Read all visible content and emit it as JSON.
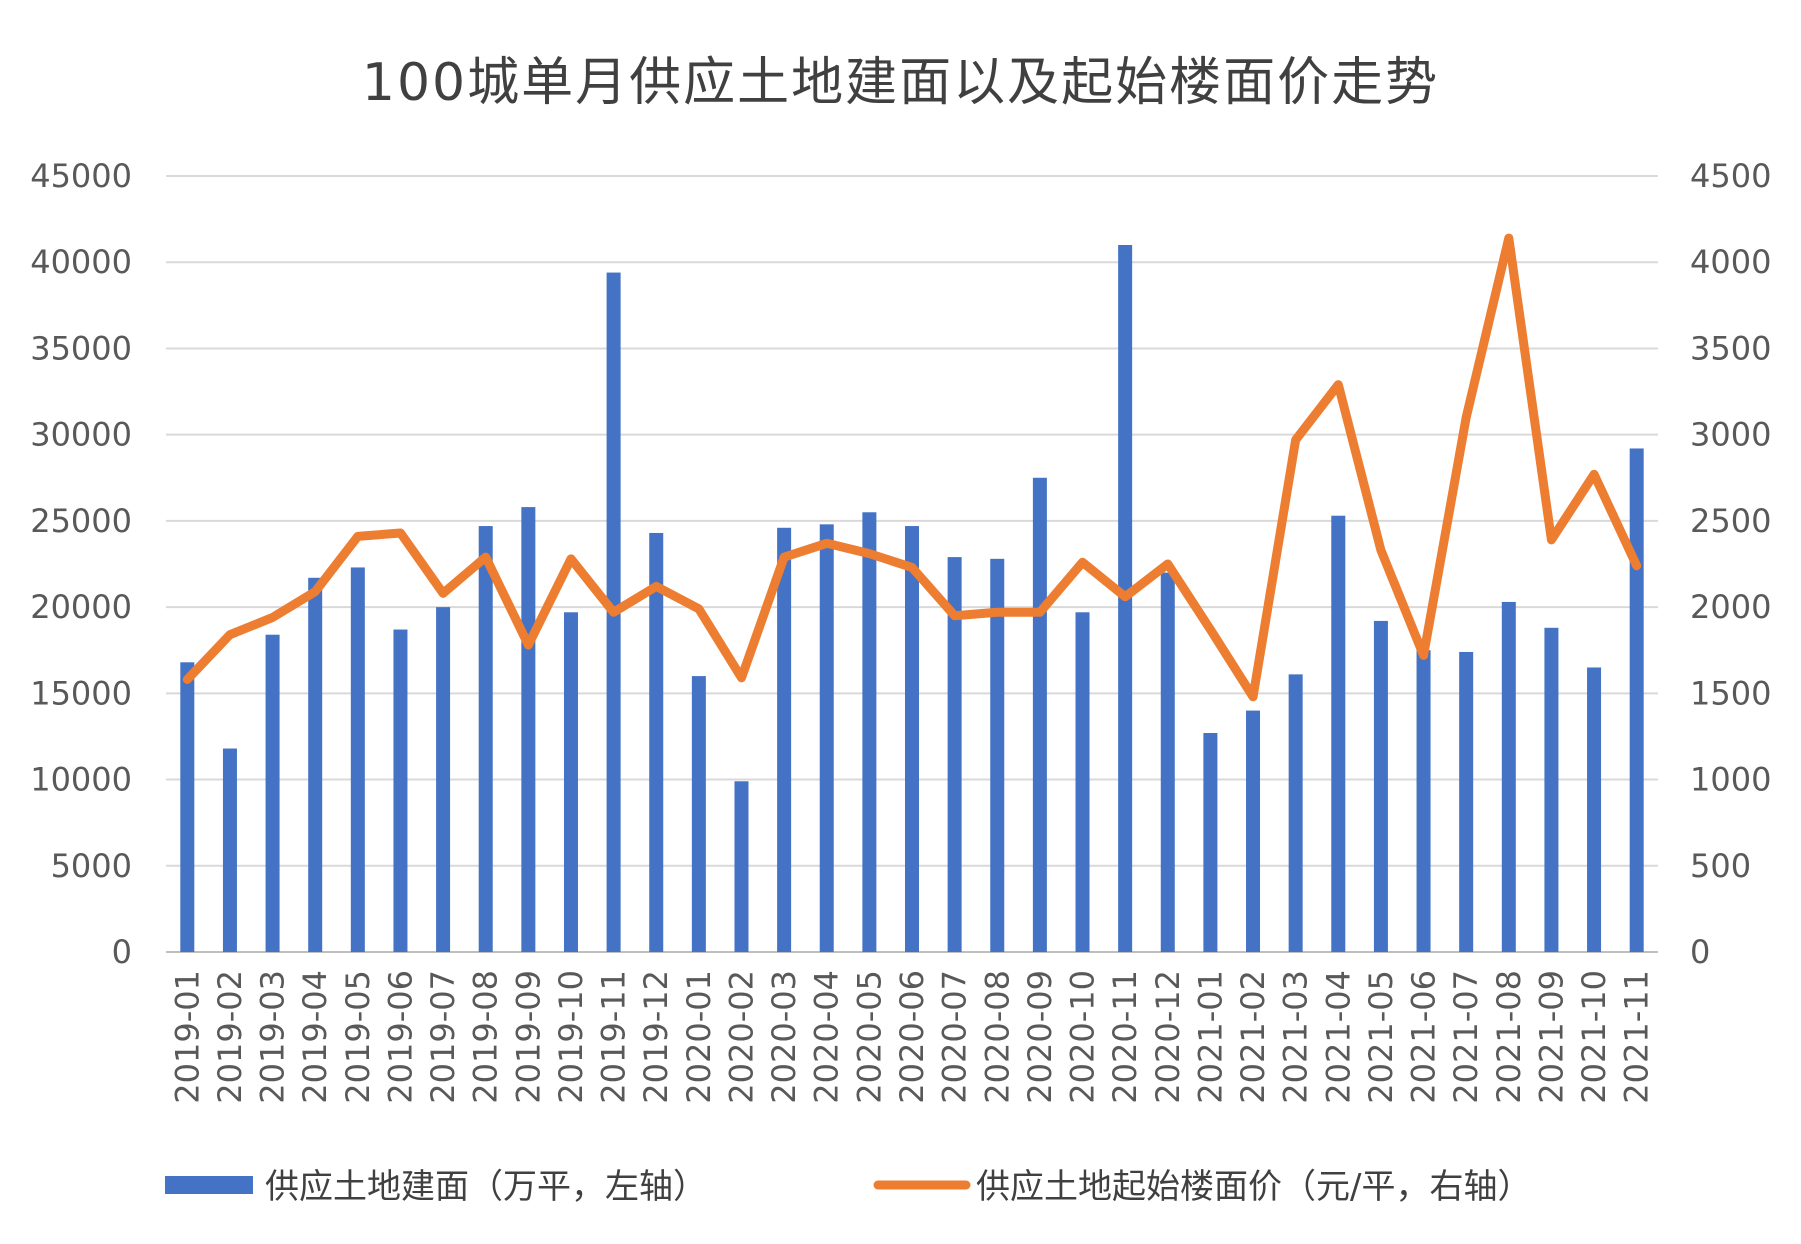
{
  "chart_data": {
    "type": "bar",
    "title": "100城单月供应土地建面以及起始楼面价走势",
    "categories": [
      "2019-01",
      "2019-02",
      "2019-03",
      "2019-04",
      "2019-05",
      "2019-06",
      "2019-07",
      "2019-08",
      "2019-09",
      "2019-10",
      "2019-11",
      "2019-12",
      "2020-01",
      "2020-02",
      "2020-03",
      "2020-04",
      "2020-05",
      "2020-06",
      "2020-07",
      "2020-08",
      "2020-09",
      "2020-10",
      "2020-11",
      "2020-12",
      "2021-01",
      "2021-02",
      "2021-03",
      "2021-04",
      "2021-05",
      "2021-06",
      "2021-07",
      "2021-08",
      "2021-09",
      "2021-10",
      "2021-11"
    ],
    "series": [
      {
        "name": "供应土地建面（万平，左轴）",
        "type": "bar",
        "axis": "left",
        "color": "#4472C4",
        "values": [
          16800,
          11800,
          18400,
          21700,
          22300,
          18700,
          20000,
          24700,
          25800,
          19700,
          39400,
          24300,
          16000,
          9900,
          24600,
          24800,
          25500,
          24700,
          22900,
          22800,
          27500,
          19700,
          41000,
          22000,
          12700,
          14000,
          16100,
          25300,
          19200,
          17500,
          17400,
          20300,
          18800,
          16500,
          29200
        ]
      },
      {
        "name": "供应土地起始楼面价（元/平，右轴）",
        "type": "line",
        "axis": "right",
        "color": "#ED7D31",
        "values": [
          1580,
          1840,
          1940,
          2090,
          2410,
          2430,
          2080,
          2290,
          1780,
          2280,
          1970,
          2120,
          1990,
          1590,
          2290,
          2370,
          2310,
          2230,
          1950,
          1970,
          1970,
          2260,
          2060,
          2250,
          1870,
          1480,
          2970,
          3290,
          2330,
          1720,
          3100,
          4140,
          2390,
          2770,
          2240
        ]
      }
    ],
    "y_left": {
      "min": 0,
      "max": 45000,
      "step": 5000
    },
    "y_right": {
      "min": 0,
      "max": 4500,
      "step": 500
    },
    "grid": true,
    "legend_position": "bottom"
  }
}
